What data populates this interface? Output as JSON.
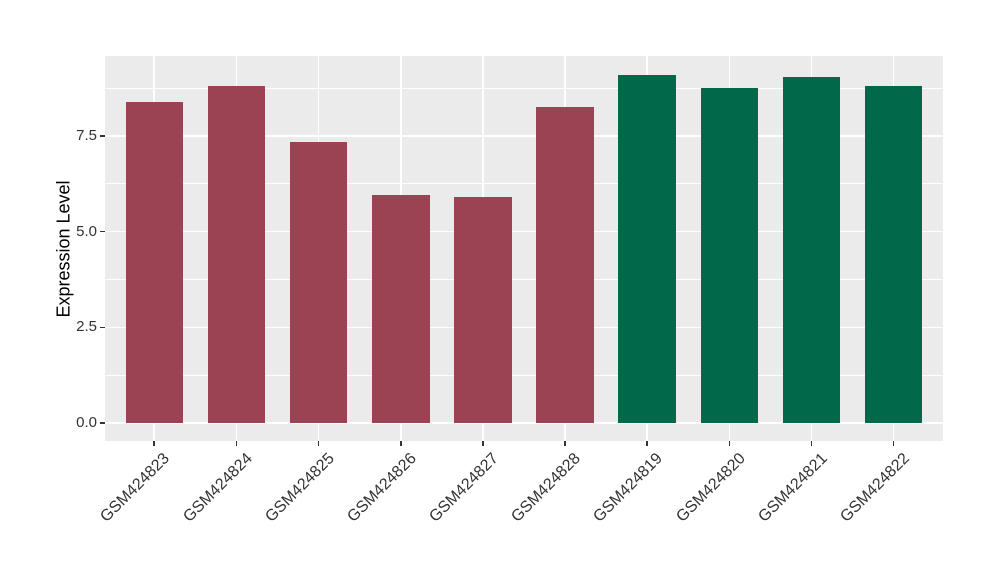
{
  "chart": {
    "figure_bg": "#FFFFFF",
    "panel_bg": "#EBEBEB",
    "grid_color": "#FFFFFF",
    "tick_color": "#333333",
    "red_bar_color": "#9B4352",
    "green_bar_color": "#02684A"
  },
  "chart_data": {
    "type": "bar",
    "title": "",
    "xlabel": "",
    "ylabel": "Expression Level",
    "categories": [
      "GSM424823",
      "GSM424824",
      "GSM424825",
      "GSM424826",
      "GSM424827",
      "GSM424828",
      "GSM424819",
      "GSM424820",
      "GSM424821",
      "GSM424822"
    ],
    "values": [
      8.4,
      8.8,
      7.35,
      5.95,
      5.9,
      8.25,
      9.1,
      8.75,
      9.05,
      8.8
    ],
    "bar_colors": [
      "#9B4352",
      "#9B4352",
      "#9B4352",
      "#9B4352",
      "#9B4352",
      "#9B4352",
      "#02684A",
      "#02684A",
      "#02684A",
      "#02684A"
    ],
    "ylim": [
      -0.47,
      9.59
    ],
    "yticks": [
      0,
      2.5,
      5,
      7.5
    ],
    "ytick_labels": [
      "0.0",
      "2.5",
      "5.0",
      "7.5"
    ],
    "minor_yticks": [
      1.25,
      3.75,
      6.25,
      8.75
    ],
    "grid": "on",
    "legend": "none",
    "bar_width_frac": 0.7,
    "x_expand": 0.6,
    "x_label_angle": -45
  }
}
